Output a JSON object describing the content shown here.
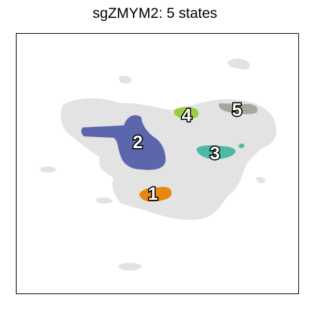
{
  "chart_data": {
    "type": "scatter",
    "title": "sgZMYM2: 5 states",
    "xlabel": "",
    "ylabel": "",
    "grid": false,
    "axis_ticks": false,
    "background_color": "#dcdcdc",
    "states": [
      {
        "name": "1",
        "color": "#e6870f"
      },
      {
        "name": "2",
        "color": "#5c66ad"
      },
      {
        "name": "3",
        "color": "#4db8a3"
      },
      {
        "name": "4",
        "color": "#99cc3f"
      },
      {
        "name": "5",
        "color": "#a3a89c"
      }
    ]
  }
}
